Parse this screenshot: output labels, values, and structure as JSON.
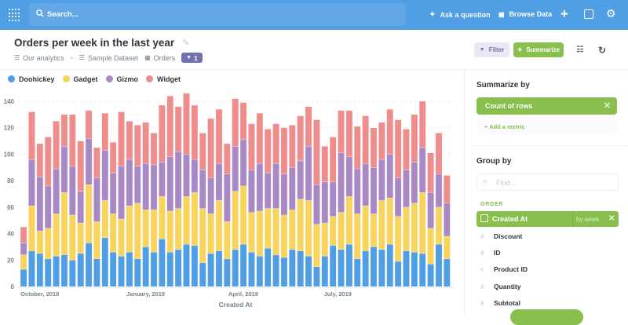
{
  "nav": {
    "search_placeholder": "Search...",
    "ask": "Ask a question",
    "browse": "Browse Data",
    "icons": [
      "metabase-logo-icon",
      "search-icon",
      "sparkle-icon",
      "grid-icon",
      "plus-icon",
      "terminal-icon",
      "gear-icon"
    ]
  },
  "header": {
    "title": "Orders per week in the last year",
    "breadcrumb": [
      "Our analytics",
      "Sample Dataset",
      "Orders"
    ],
    "filter_count": "1",
    "filter_label": "Filter",
    "summarize_label": "Summarize"
  },
  "colors": {
    "nav": "#509ee3",
    "accent_green": "#88bf4d",
    "filter_purple": "#7172ad",
    "Doohickey": "#509ee3",
    "Gadget": "#f9d45c",
    "Gizmo": "#a989c5",
    "Widget": "#ef8c8c"
  },
  "sidebar": {
    "summarize_title": "Summarize by",
    "metric": "Count of rows",
    "add_metric": "Add a metric",
    "group_title": "Group by",
    "find_placeholder": "Find...",
    "section": "ORDER",
    "selected": {
      "label": "Created At",
      "bucket": "by week"
    },
    "fields": [
      {
        "label": "Discount",
        "icon": "hash-icon"
      },
      {
        "label": "ID",
        "icon": "hash-icon"
      },
      {
        "label": "Product ID",
        "icon": "connection-icon"
      },
      {
        "label": "Quantity",
        "icon": "hash-icon"
      },
      {
        "label": "Subtotal",
        "icon": "hash-icon"
      }
    ]
  },
  "chart_data": {
    "type": "bar",
    "stacked": true,
    "grid": true,
    "legend_placement": "top-left",
    "xlabel": "Created At",
    "ylabel": "",
    "ylim": [
      0,
      140
    ],
    "yticks": [
      0,
      20,
      40,
      60,
      80,
      100,
      120,
      140
    ],
    "xtick_labels": [
      "October, 2018",
      "January, 2019",
      "April, 2019",
      "July, 2019"
    ],
    "series": [
      {
        "name": "Doohickey",
        "values": [
          13,
          27,
          25,
          21,
          23,
          24,
          20,
          25,
          33,
          21,
          37,
          26,
          23,
          26,
          21,
          30,
          26,
          36,
          26,
          28,
          32,
          31,
          18,
          25,
          27,
          21,
          28,
          32,
          26,
          23,
          29,
          24,
          22,
          28,
          27,
          23,
          15,
          23,
          31,
          28,
          32,
          21,
          27,
          30,
          28,
          32,
          19,
          27,
          26,
          25,
          17,
          32,
          21
        ]
      },
      {
        "name": "Gadget",
        "values": [
          11,
          34,
          17,
          23,
          32,
          47,
          34,
          23,
          44,
          28,
          28,
          29,
          28,
          35,
          42,
          28,
          32,
          32,
          31,
          31,
          36,
          40,
          41,
          30,
          38,
          28,
          44,
          44,
          30,
          34,
          30,
          35,
          32,
          30,
          39,
          42,
          32,
          25,
          22,
          28,
          36,
          34,
          34,
          25,
          37,
          35,
          34,
          33,
          37,
          46,
          27,
          28,
          17
        ]
      },
      {
        "name": "Gizmo",
        "values": [
          9,
          35,
          41,
          32,
          34,
          35,
          37,
          24,
          35,
          33,
          38,
          31,
          40,
          35,
          28,
          35,
          34,
          26,
          41,
          43,
          32,
          25,
          29,
          27,
          28,
          36,
          34,
          35,
          32,
          36,
          27,
          34,
          31,
          32,
          29,
          41,
          30,
          31,
          26,
          45,
          30,
          34,
          32,
          35,
          31,
          33,
          29,
          28,
          31,
          34,
          27,
          25,
          25
        ]
      },
      {
        "name": "Widget",
        "values": [
          12,
          36,
          25,
          37,
          36,
          24,
          39,
          38,
          21,
          23,
          28,
          23,
          41,
          29,
          31,
          31,
          24,
          43,
          46,
          34,
          46,
          41,
          28,
          45,
          41,
          23,
          36,
          28,
          35,
          38,
          33,
          30,
          35,
          32,
          34,
          30,
          49,
          27,
          34,
          32,
          35,
          32,
          36,
          30,
          28,
          34,
          44,
          31,
          36,
          35,
          30,
          31,
          21
        ]
      }
    ]
  }
}
